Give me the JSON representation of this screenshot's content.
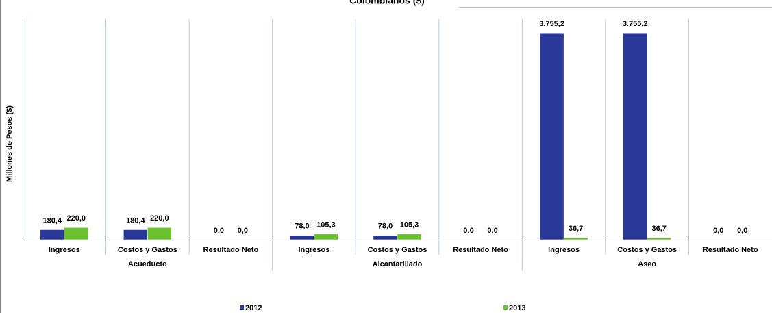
{
  "chart_data": {
    "type": "bar",
    "title": "Colombianos ($)",
    "y_label": "Millones de Pesos ($)",
    "categories": [
      "Ingresos",
      "Costos y Gastos",
      "Resultado Neto",
      "Ingresos",
      "Costos y Gastos",
      "Resultado Neto",
      "Ingresos",
      "Costos y Gastos",
      "Resultado Neto"
    ],
    "groups": [
      "Acueducto",
      "Alcantarillado",
      "Aseo"
    ],
    "series": [
      {
        "name": "2012",
        "color": "#2b3a9a",
        "values": [
          180.4,
          180.4,
          0,
          78,
          78,
          0,
          3755.2,
          3755.2,
          0
        ],
        "value_labels": [
          "180,4",
          "180,4",
          "0,0",
          "78,0",
          "78,0",
          "0,0",
          "3.755,2",
          "3.755,2",
          "0,0"
        ]
      },
      {
        "name": "2013",
        "color": "#6cc22e",
        "values": [
          220,
          220,
          0,
          105.3,
          105.3,
          0,
          36.7,
          36.7,
          0
        ],
        "value_labels": [
          "220,0",
          "220,0",
          "0,0",
          "105,3",
          "105,3",
          "0,0",
          "36,7",
          "36,7",
          "0,0"
        ]
      }
    ],
    "ylim": [
      0,
      4230
    ]
  }
}
